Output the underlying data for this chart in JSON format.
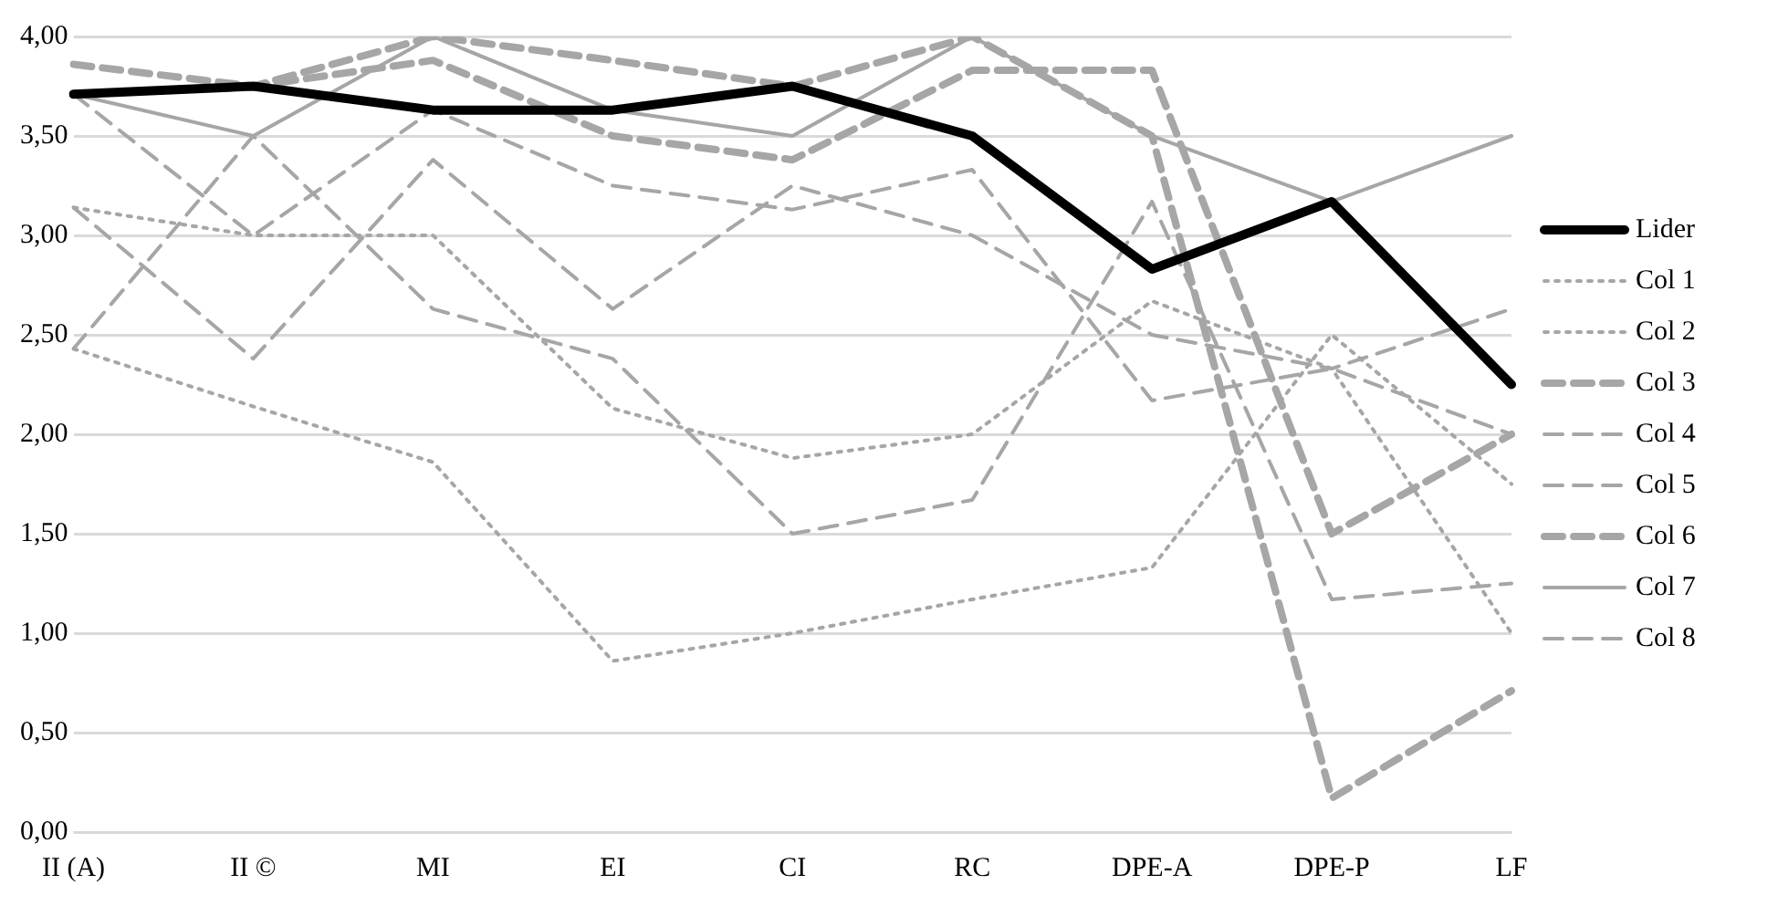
{
  "chart_data": {
    "type": "line",
    "categories": [
      "II (A)",
      "II ©",
      "MI",
      "EI",
      "CI",
      "RC",
      "DPE-A",
      "DPE-P",
      "LF"
    ],
    "ylim": [
      0,
      4
    ],
    "yticks": [
      {
        "value": 0,
        "label": "0,00"
      },
      {
        "value": 0.5,
        "label": "0,50"
      },
      {
        "value": 1,
        "label": "1,00"
      },
      {
        "value": 1.5,
        "label": "1,50"
      },
      {
        "value": 2,
        "label": "2,00"
      },
      {
        "value": 2.5,
        "label": "2,50"
      },
      {
        "value": 3,
        "label": "3,00"
      },
      {
        "value": 3.5,
        "label": "3,50"
      },
      {
        "value": 4,
        "label": "4,00"
      }
    ],
    "grid": "y",
    "legend": "right",
    "marker": "none",
    "series": [
      {
        "name": "Lider",
        "color": "#000000",
        "line_style": "solid",
        "values": [
          3.71,
          3.75,
          3.63,
          3.63,
          3.75,
          3.5,
          2.83,
          3.17,
          2.25
        ]
      },
      {
        "name": "Col 1",
        "color": "#a6a6a6",
        "line_style": "dotted",
        "values": [
          2.43,
          2.14,
          1.86,
          0.86,
          1.0,
          1.17,
          1.33,
          2.5,
          1.75
        ]
      },
      {
        "name": "Col 2",
        "color": "#a6a6a6",
        "line_style": "dotted",
        "values": [
          3.14,
          3.0,
          3.0,
          2.13,
          1.88,
          2.0,
          2.67,
          2.33,
          1.0
        ]
      },
      {
        "name": "Col 3",
        "color": "#a6a6a6",
        "line_style": "dashed",
        "values": [
          3.71,
          3.75,
          3.88,
          3.5,
          3.38,
          3.83,
          3.83,
          1.5,
          2.0
        ]
      },
      {
        "name": "Col 4",
        "color": "#a6a6a6",
        "line_style": "dashed",
        "values": [
          3.71,
          3.0,
          3.63,
          3.25,
          3.13,
          3.33,
          2.17,
          2.33,
          2.0
        ]
      },
      {
        "name": "Col 5",
        "color": "#a6a6a6",
        "line_style": "dashed",
        "values": [
          3.14,
          2.38,
          3.38,
          2.63,
          3.25,
          3.0,
          2.5,
          2.33,
          2.63
        ]
      },
      {
        "name": "Col 6",
        "color": "#a6a6a6",
        "line_style": "dashed",
        "values": [
          3.86,
          3.75,
          4.0,
          3.88,
          3.75,
          4.0,
          3.5,
          0.17,
          0.71
        ]
      },
      {
        "name": "Col 7",
        "color": "#a6a6a6",
        "line_style": "solid",
        "values": [
          3.71,
          3.5,
          4.0,
          3.63,
          3.5,
          4.0,
          3.5,
          3.17,
          3.5
        ]
      },
      {
        "name": "Col 8",
        "color": "#a6a6a6",
        "line_style": "dashed",
        "values": [
          2.43,
          3.5,
          2.63,
          2.38,
          1.5,
          1.67,
          3.17,
          1.17,
          1.25
        ]
      }
    ]
  }
}
